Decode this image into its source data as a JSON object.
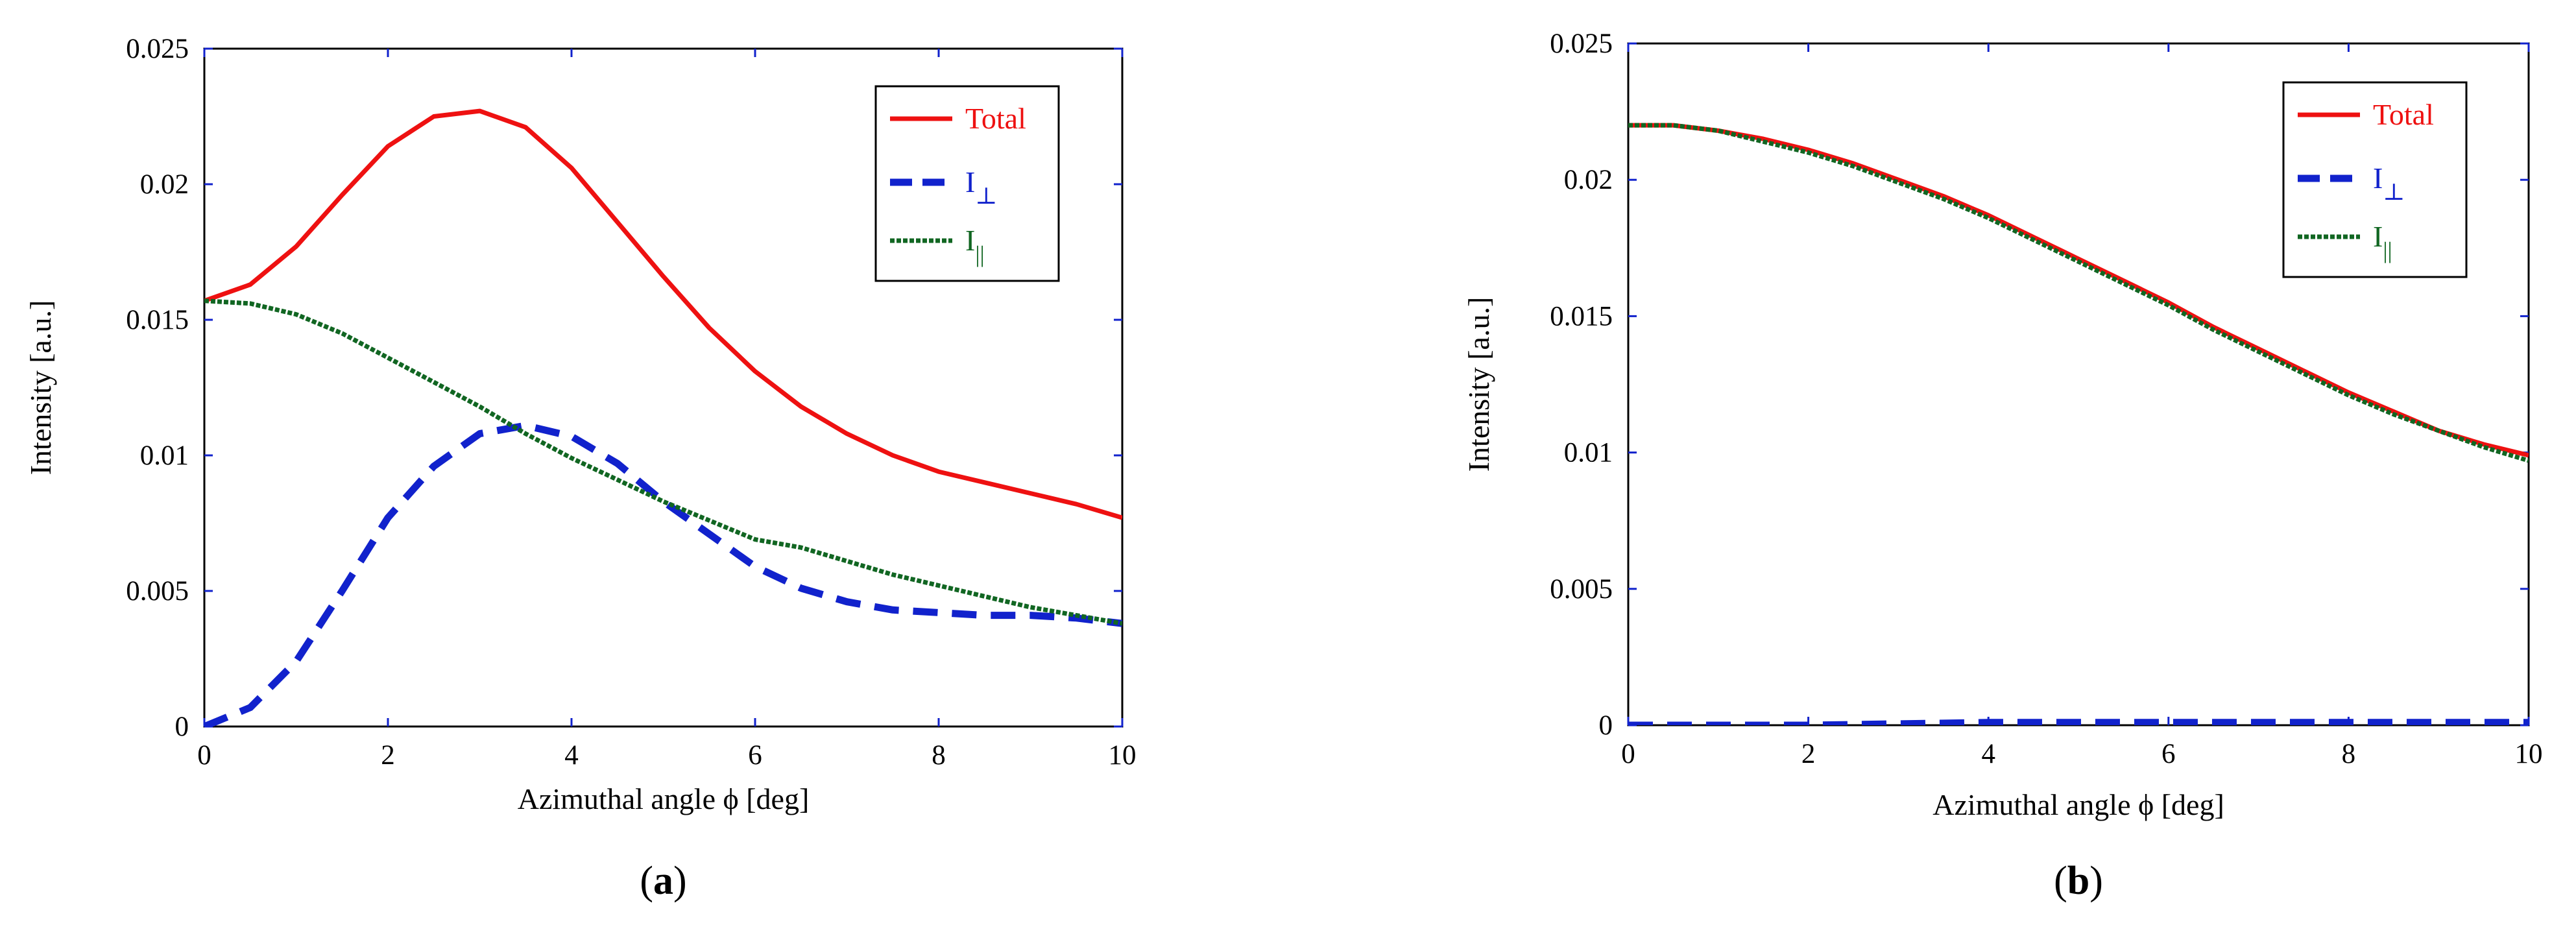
{
  "chart_data": [
    {
      "type": "line",
      "panel_label": "a",
      "xlabel": "Azimuthal angle ϕ [deg]",
      "ylabel": "Intensity [a.u.]",
      "xlim": [
        0,
        10
      ],
      "ylim": [
        0,
        0.025
      ],
      "xticks": [
        0,
        2,
        4,
        6,
        8,
        10
      ],
      "yticks": [
        0,
        0.005,
        0.01,
        0.015,
        0.02,
        0.025
      ],
      "ytick_labels": [
        "0",
        "0.005",
        "0.01",
        "0.015",
        "0.02",
        "0.025"
      ],
      "xtick_labels": [
        "0",
        "2",
        "4",
        "6",
        "8",
        "10"
      ],
      "legend": {
        "placement": "top-right"
      },
      "series": [
        {
          "name": "Total",
          "label_main": "Total",
          "label_sub": "",
          "color": "#ee1111",
          "style": "solid",
          "x": [
            0,
            0.5,
            1,
            1.5,
            2,
            2.5,
            3,
            3.5,
            4,
            4.5,
            5,
            5.5,
            6,
            6.5,
            7,
            7.5,
            8,
            8.5,
            9,
            9.5,
            10
          ],
          "y": [
            0.0157,
            0.0163,
            0.0177,
            0.0196,
            0.0214,
            0.0225,
            0.0227,
            0.0221,
            0.0206,
            0.0186,
            0.0166,
            0.0147,
            0.0131,
            0.0118,
            0.0108,
            0.01,
            0.0094,
            0.009,
            0.0086,
            0.0082,
            0.0077
          ]
        },
        {
          "name": "I⊥",
          "label_main": "I",
          "label_sub": "⊥",
          "color": "#1122cc",
          "style": "dashed",
          "x": [
            0,
            0.5,
            1,
            1.5,
            2,
            2.5,
            3,
            3.5,
            4,
            4.5,
            5,
            5.5,
            6,
            6.5,
            7,
            7.5,
            8,
            8.5,
            9,
            9.5,
            10
          ],
          "y": [
            0,
            0.0007,
            0.0024,
            0.005,
            0.0077,
            0.0096,
            0.0108,
            0.0111,
            0.0107,
            0.0097,
            0.0083,
            0.0071,
            0.0059,
            0.0051,
            0.0046,
            0.0043,
            0.0042,
            0.0041,
            0.0041,
            0.004,
            0.0038
          ]
        },
        {
          "name": "I||",
          "label_main": "I",
          "label_sub": "||",
          "color": "#116622",
          "style": "dotted",
          "x": [
            0,
            0.5,
            1,
            1.5,
            2,
            2.5,
            3,
            3.5,
            4,
            4.5,
            5,
            5.5,
            6,
            6.5,
            7,
            7.5,
            8,
            8.5,
            9,
            9.5,
            10
          ],
          "y": [
            0.0157,
            0.0156,
            0.0152,
            0.0145,
            0.0136,
            0.0127,
            0.0118,
            0.0108,
            0.0099,
            0.0091,
            0.0083,
            0.0076,
            0.0069,
            0.0066,
            0.0061,
            0.0056,
            0.0052,
            0.0048,
            0.0044,
            0.0041,
            0.0038
          ]
        }
      ]
    },
    {
      "type": "line",
      "panel_label": "b",
      "xlabel": "Azimuthal angle ϕ [deg]",
      "ylabel": "Intensity [a.u.]",
      "xlim": [
        0,
        10
      ],
      "ylim": [
        0,
        0.025
      ],
      "xticks": [
        0,
        2,
        4,
        6,
        8,
        10
      ],
      "yticks": [
        0,
        0.005,
        0.01,
        0.015,
        0.02,
        0.025
      ],
      "ytick_labels": [
        "0",
        "0.005",
        "0.01",
        "0.015",
        "0.02",
        "0.025"
      ],
      "xtick_labels": [
        "0",
        "2",
        "4",
        "6",
        "8",
        "10"
      ],
      "legend": {
        "placement": "top-right"
      },
      "series": [
        {
          "name": "Total",
          "label_main": "Total",
          "label_sub": "",
          "color": "#ee1111",
          "style": "solid",
          "x": [
            0,
            0.5,
            1,
            1.5,
            2,
            2.5,
            3,
            3.5,
            4,
            4.5,
            5,
            5.5,
            6,
            6.5,
            7,
            7.5,
            8,
            8.5,
            9,
            9.5,
            10
          ],
          "y": [
            0.022,
            0.022,
            0.0218,
            0.0215,
            0.0211,
            0.0206,
            0.02,
            0.0194,
            0.0187,
            0.0179,
            0.0171,
            0.0163,
            0.0155,
            0.0146,
            0.0138,
            0.013,
            0.0122,
            0.0115,
            0.0108,
            0.0103,
            0.0099
          ]
        },
        {
          "name": "I⊥",
          "label_main": "I",
          "label_sub": "⊥",
          "color": "#1122cc",
          "style": "dashed",
          "x": [
            0,
            2,
            4,
            6,
            8,
            10
          ],
          "y": [
            0,
            0,
            0.0001,
            0.0001,
            0.0001,
            0.0001
          ]
        },
        {
          "name": "I||",
          "label_main": "I",
          "label_sub": "||",
          "color": "#116622",
          "style": "dotted",
          "x": [
            0,
            0.5,
            1,
            1.5,
            2,
            2.5,
            3,
            3.5,
            4,
            4.5,
            5,
            5.5,
            6,
            6.5,
            7,
            7.5,
            8,
            8.5,
            9,
            9.5,
            10
          ],
          "y": [
            0.022,
            0.022,
            0.0218,
            0.0214,
            0.021,
            0.0205,
            0.0199,
            0.0193,
            0.0186,
            0.0178,
            0.017,
            0.0162,
            0.0154,
            0.0145,
            0.0137,
            0.0129,
            0.0121,
            0.0114,
            0.0108,
            0.0102,
            0.0097
          ]
        }
      ]
    }
  ]
}
